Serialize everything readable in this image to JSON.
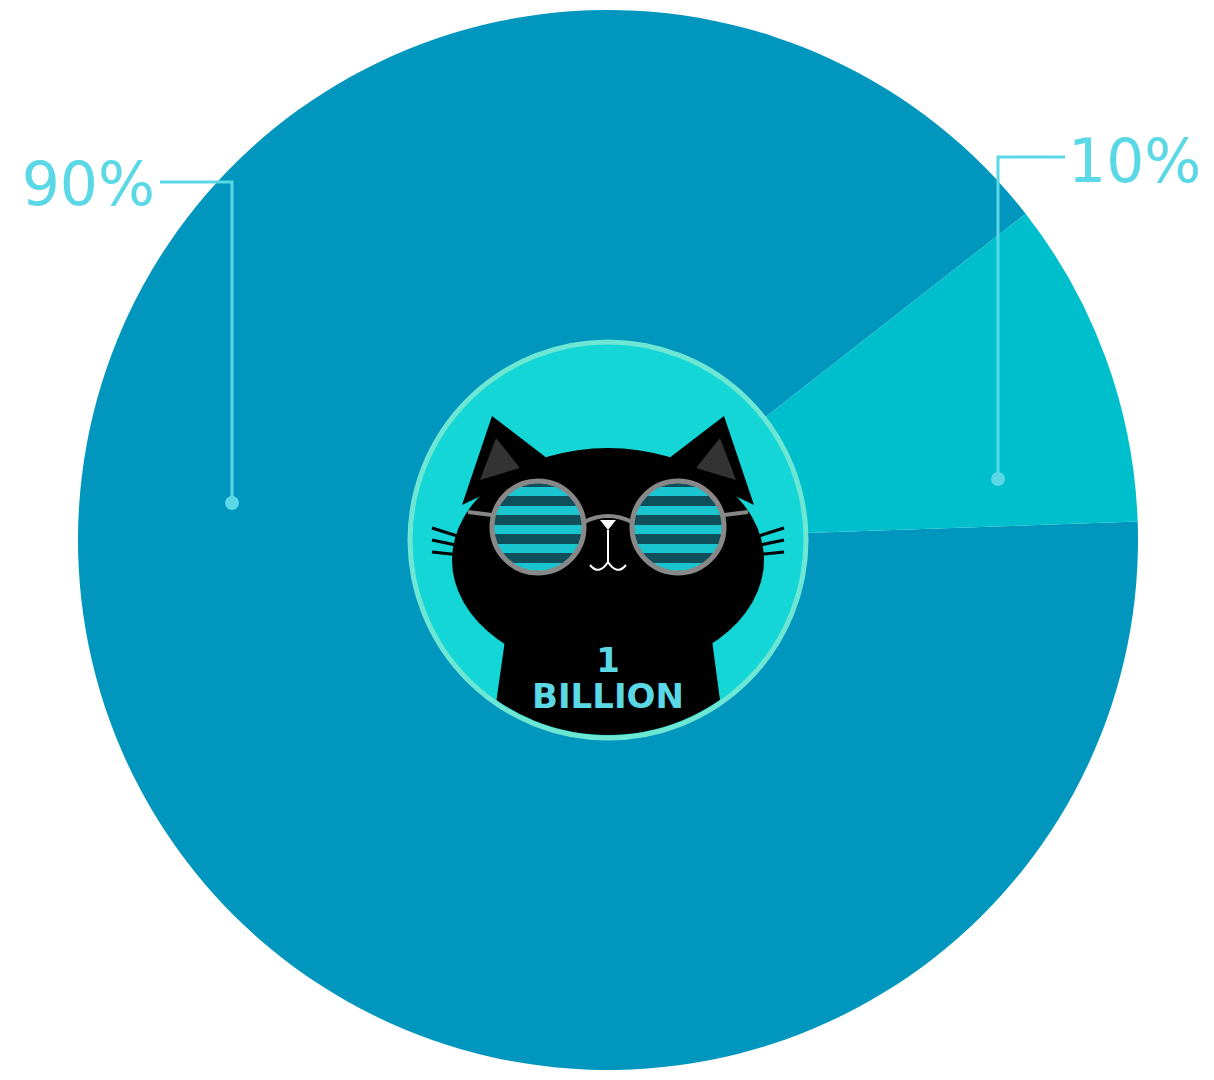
{
  "chart_data": {
    "type": "pie",
    "values": [
      90,
      10
    ],
    "value_labels": [
      "90%",
      "10%"
    ],
    "colors": [
      "#0096bd",
      "#00bfcc"
    ],
    "data_labels": true,
    "annotations": [
      "1",
      "BILLION"
    ]
  }
}
